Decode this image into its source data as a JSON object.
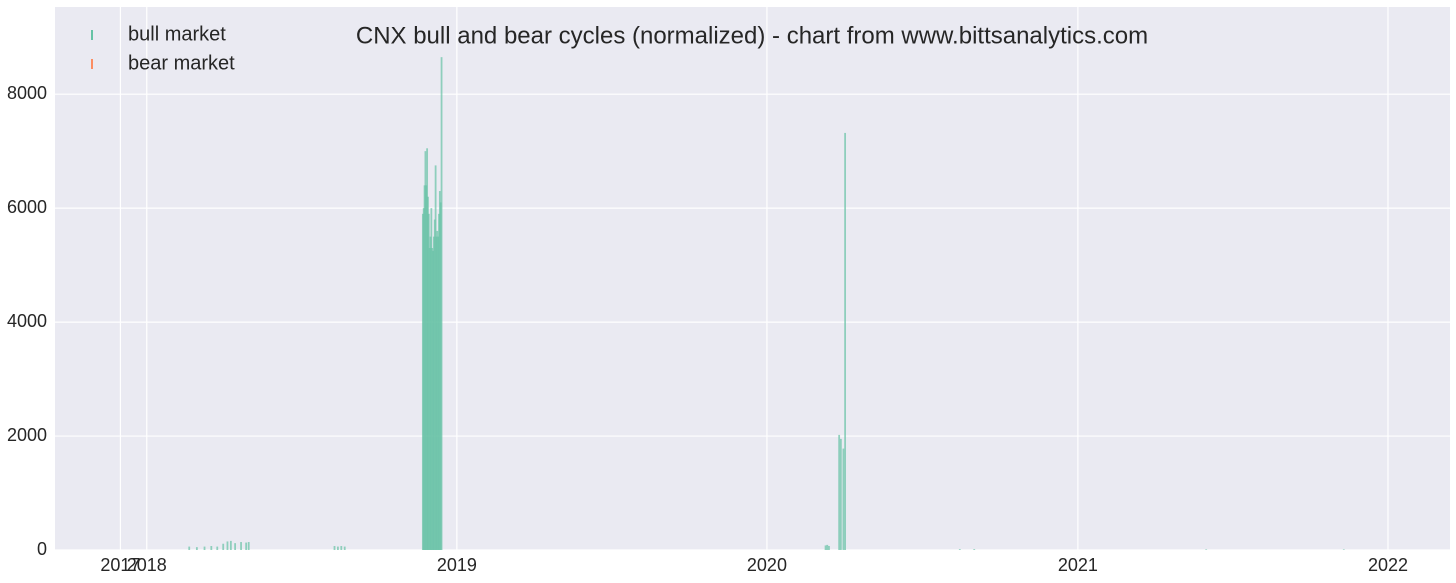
{
  "chart_data": {
    "type": "bar",
    "title": "CNX bull and bear cycles (normalized)  - chart from www.bittsanalytics.com",
    "x": [
      "2018-02-20",
      "2018-03-01",
      "2018-03-10",
      "2018-03-18",
      "2018-03-25",
      "2018-04-01",
      "2018-04-06",
      "2018-04-10",
      "2018-04-15",
      "2018-04-22",
      "2018-04-28",
      "2018-05-01",
      "2018-08-10",
      "2018-08-14",
      "2018-08-18",
      "2018-08-22",
      "2018-11-22",
      "2018-11-23",
      "2018-11-24",
      "2018-11-25",
      "2018-11-26",
      "2018-11-27",
      "2018-11-28",
      "2018-11-29",
      "2018-11-30",
      "2018-12-01",
      "2018-12-02",
      "2018-12-03",
      "2018-12-04",
      "2018-12-05",
      "2018-12-06",
      "2018-12-07",
      "2018-12-08",
      "2018-12-09",
      "2018-12-10",
      "2018-12-11",
      "2018-12-12",
      "2018-12-13",
      "2018-12-14",
      "2020-03-10",
      "2020-03-12",
      "2020-03-14",
      "2020-03-26",
      "2020-03-28",
      "2020-03-31",
      "2020-04-02",
      "2020-08-15",
      "2020-09-01",
      "2021-06-01",
      "2021-11-10"
    ],
    "series": [
      {
        "name": "bull market",
        "color": "#66c2a5",
        "values": [
          60,
          50,
          60,
          70,
          60,
          110,
          150,
          160,
          120,
          140,
          130,
          140,
          70,
          60,
          70,
          60,
          5900,
          6000,
          6400,
          7000,
          6400,
          7050,
          6200,
          5900,
          5300,
          5500,
          6000,
          5300,
          5250,
          5500,
          5800,
          6750,
          5500,
          5600,
          5500,
          5900,
          6300,
          6100,
          8650,
          80,
          90,
          70,
          2020,
          1950,
          1780,
          7320,
          15,
          15,
          10,
          10
        ]
      },
      {
        "name": "bear market",
        "color": "#fc8d62",
        "values": [
          null,
          null,
          null,
          null,
          null,
          null,
          null,
          null,
          null,
          null,
          null,
          null,
          null,
          null,
          null,
          null,
          null,
          null,
          null,
          null,
          null,
          null,
          null,
          null,
          null,
          null,
          null,
          null,
          null,
          null,
          null,
          null,
          null,
          null,
          null,
          null,
          null,
          null,
          null,
          null,
          null,
          null,
          null,
          null,
          null,
          null,
          null,
          null,
          null,
          null
        ]
      }
    ],
    "xlim": [
      "2017-09-15",
      "2022-03-15"
    ],
    "xticks": [
      {
        "value": "2017-12-01",
        "label": "2017"
      },
      {
        "value": "2018-01-01",
        "label": "2018"
      },
      {
        "value": "2019-01-01",
        "label": "2019"
      },
      {
        "value": "2020-01-01",
        "label": "2020"
      },
      {
        "value": "2021-01-01",
        "label": "2021"
      },
      {
        "value": "2022-01-01",
        "label": "2022"
      }
    ],
    "ylim": [
      0,
      9530
    ],
    "yticks": [
      0,
      2000,
      4000,
      6000,
      8000
    ],
    "grid": true,
    "legend": "upper left"
  }
}
